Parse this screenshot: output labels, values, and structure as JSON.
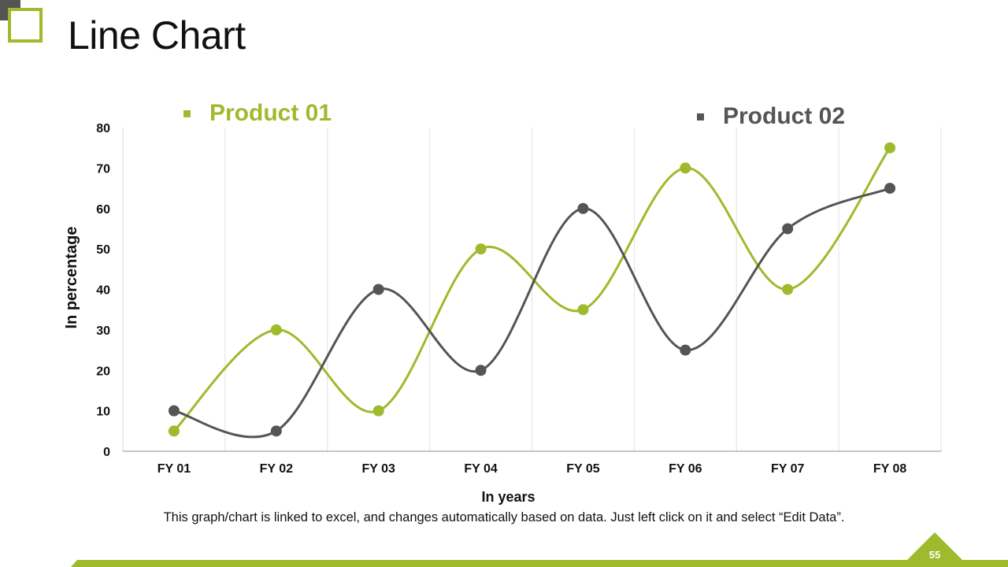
{
  "slide": {
    "title": "Line Chart",
    "note": "This graph/chart is linked to excel, and changes automatically based on data. Just left click on it and select “Edit Data”.",
    "page_number": "55"
  },
  "colors": {
    "accent": "#9fba2d",
    "dark": "#555555",
    "text": "#111111"
  },
  "chart_data": {
    "type": "line",
    "smooth": true,
    "categories": [
      "FY 01",
      "FY 02",
      "FY 03",
      "FY 04",
      "FY 05",
      "FY 06",
      "FY 07",
      "FY 08"
    ],
    "series": [
      {
        "name": "Product 01",
        "color": "#9fba2d",
        "values": [
          5,
          30,
          10,
          50,
          35,
          70,
          40,
          75
        ]
      },
      {
        "name": "Product 02",
        "color": "#555555",
        "values": [
          10,
          5,
          40,
          20,
          60,
          25,
          55,
          65
        ]
      }
    ],
    "xlabel": "In years",
    "ylabel": "In percentage",
    "ylim": [
      0,
      80
    ],
    "yticks": [
      "0",
      "10",
      "20",
      "30",
      "40",
      "50",
      "60",
      "70",
      "80"
    ],
    "grid": "vertical",
    "legend": "top"
  }
}
